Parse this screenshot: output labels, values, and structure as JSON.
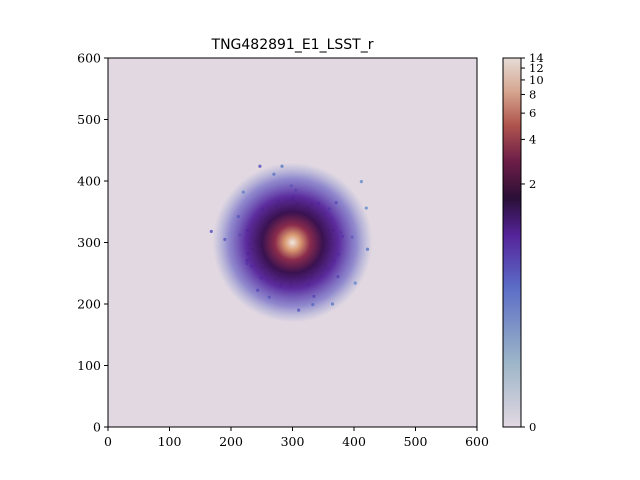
{
  "chart_data": {
    "type": "scatter",
    "title": "TNG482891_E1_LSST_r",
    "xlabel": "",
    "ylabel": "",
    "xlim": [
      0,
      600
    ],
    "ylim": [
      0,
      600
    ],
    "xticks": [
      "0",
      "100",
      "200",
      "300",
      "400",
      "500",
      "600"
    ],
    "yticks": [
      "0",
      "100",
      "200",
      "300",
      "400",
      "500",
      "600"
    ],
    "background_color": "#e2d8e2",
    "source_center": [
      300,
      300
    ],
    "colorbar": {
      "scale": "log-like",
      "range": [
        0,
        14
      ],
      "ticks": [
        "0",
        "2",
        "4",
        "6",
        "8",
        "10",
        "12",
        "14"
      ],
      "colors": [
        "#e2d8e2",
        "#7ba3c5",
        "#5a6bc8",
        "#55239a",
        "#2c0f3a",
        "#8a2c4c",
        "#c8765a",
        "#ddc4b0",
        "#e8dcd6"
      ]
    },
    "sample_points": [
      {
        "x": 247,
        "y": 424
      },
      {
        "x": 283,
        "y": 424
      },
      {
        "x": 412,
        "y": 399
      },
      {
        "x": 168,
        "y": 318
      },
      {
        "x": 420,
        "y": 356
      },
      {
        "x": 422,
        "y": 289
      },
      {
        "x": 310,
        "y": 190
      },
      {
        "x": 333,
        "y": 199
      },
      {
        "x": 402,
        "y": 234
      },
      {
        "x": 190,
        "y": 305
      },
      {
        "x": 220,
        "y": 382
      },
      {
        "x": 365,
        "y": 200
      }
    ]
  }
}
